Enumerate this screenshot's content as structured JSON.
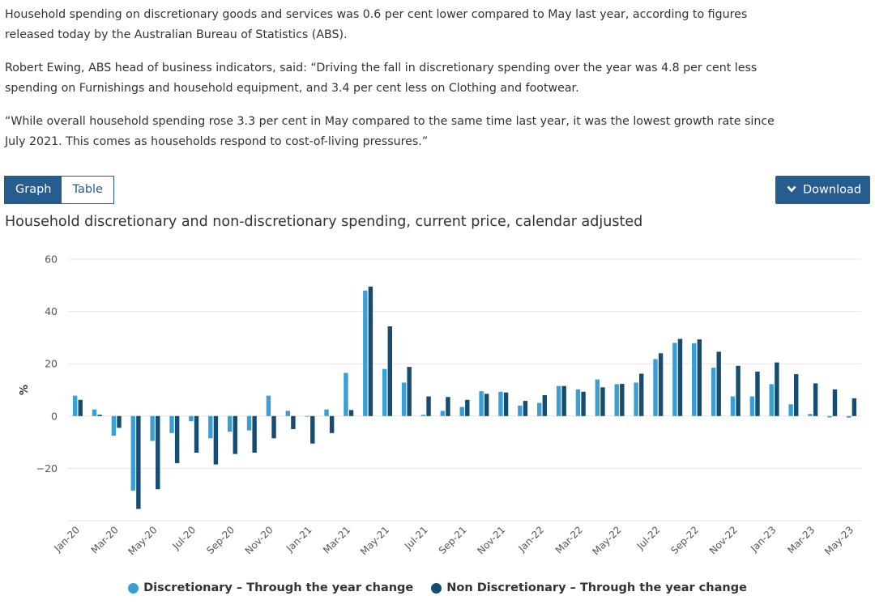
{
  "paragraphs": [
    "Household spending on discretionary goods and services was 0.6 per cent lower compared to May last year, according to figures released today by the Australian Bureau of Statistics (ABS).",
    "Robert Ewing, ABS head of business indicators, said: “Driving the fall in discretionary spending over the year was 4.8 per cent less spending on Furnishings and household equipment, and 3.4 per cent less on Clothing and footwear.",
    "“While overall household spending rose 3.3 per cent in May compared to the same time last year, it was the lowest growth rate since July 2021. This comes as households respond to cost-of-living pressures.”"
  ],
  "toggle": {
    "graph": "Graph",
    "table": "Table"
  },
  "download": {
    "label": "Download",
    "icon": "chevron-down-icon"
  },
  "colors": {
    "discretionary": "#3a9fd4",
    "non_discretionary": "#164c70",
    "button": "#275c8f",
    "grid": "#e6e6e6"
  },
  "chart_data": {
    "type": "bar",
    "title": "Household discretionary and non-discretionary spending, current price, calendar adjusted",
    "xlabel": "",
    "ylabel": "%",
    "ylim": [
      -40,
      60
    ],
    "yticks": [
      -20,
      0,
      20,
      40,
      60
    ],
    "ytick_labels": [
      "−20",
      "0",
      "20",
      "40",
      "60"
    ],
    "grid": true,
    "legend_position": "bottom",
    "tick_labels": [
      "Jan-20",
      "Mar-20",
      "May-20",
      "Jul-20",
      "Sep-20",
      "Nov-20",
      "Jan-21",
      "Mar-21",
      "May-21",
      "Jul-21",
      "Sep-21",
      "Nov-21",
      "Jan-22",
      "Mar-22",
      "May-22",
      "Jul-22",
      "Sep-22",
      "Nov-22",
      "Jan-23",
      "Mar-23",
      "May-23"
    ],
    "categories": [
      "Jan-20",
      "Feb-20",
      "Mar-20",
      "Apr-20",
      "May-20",
      "Jun-20",
      "Jul-20",
      "Aug-20",
      "Sep-20",
      "Oct-20",
      "Nov-20",
      "Dec-20",
      "Jan-21",
      "Feb-21",
      "Mar-21",
      "Apr-21",
      "May-21",
      "Jun-21",
      "Jul-21",
      "Aug-21",
      "Sep-21",
      "Oct-21",
      "Nov-21",
      "Dec-21",
      "Jan-22",
      "Feb-22",
      "Mar-22",
      "Apr-22",
      "May-22",
      "Jun-22",
      "Jul-22",
      "Aug-22",
      "Sep-22",
      "Oct-22",
      "Nov-22",
      "Dec-22",
      "Jan-23",
      "Feb-23",
      "Mar-23",
      "Apr-23",
      "May-23"
    ],
    "series": [
      {
        "name": "Discretionary – Through the year change",
        "values": [
          7.8,
          2.5,
          -7.5,
          -28.5,
          -9.5,
          -6.5,
          -2,
          -8.5,
          -6,
          -5.5,
          7.8,
          2,
          0,
          2.5,
          16.5,
          48,
          18,
          12.8,
          0.5,
          2,
          3.5,
          9.5,
          9.3,
          4,
          5,
          11.5,
          10.2,
          14,
          12.2,
          12.8,
          21.8,
          28,
          27.8,
          18.5,
          7.5,
          7.5,
          12.2,
          4.5,
          0.8,
          -0.5,
          -0.6
        ]
      },
      {
        "name": "Non Discretionary – Through the year change",
        "values": [
          6.2,
          0.5,
          -4.5,
          -35.5,
          -28,
          -18,
          -14,
          -18.5,
          -14.5,
          -14,
          -8.5,
          -5,
          -10.5,
          -6.5,
          2.3,
          49.5,
          34.3,
          18.8,
          7.5,
          7.3,
          6.2,
          8.5,
          9,
          5.8,
          8,
          11.5,
          9.3,
          11,
          12.3,
          16.2,
          24,
          29.5,
          29.3,
          24.6,
          19.2,
          17,
          20.5,
          16,
          12.5,
          10.2,
          6.8
        ]
      }
    ]
  }
}
